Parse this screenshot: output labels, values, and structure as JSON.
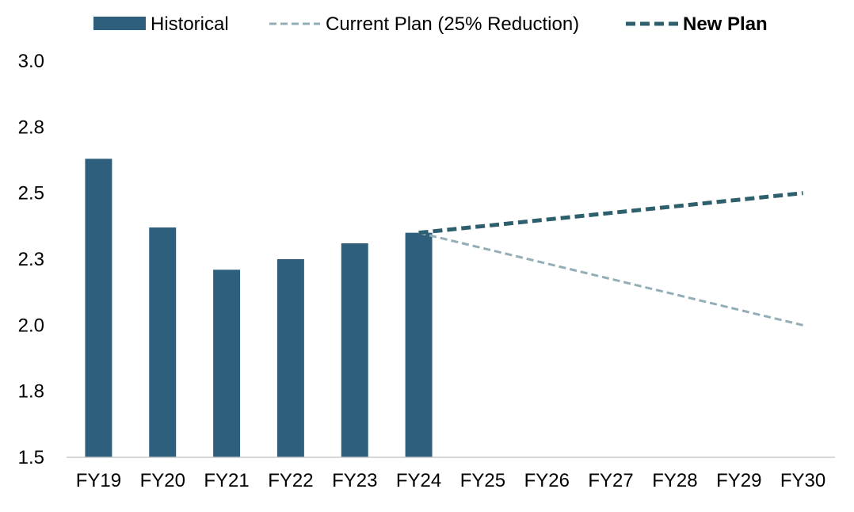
{
  "chart_data": {
    "type": "bar",
    "title": "",
    "xlabel": "",
    "ylabel": "",
    "categories": [
      "FY19",
      "FY20",
      "FY21",
      "FY22",
      "FY23",
      "FY24",
      "FY25",
      "FY26",
      "FY27",
      "FY28",
      "FY29",
      "FY30"
    ],
    "y_ticks": [
      "1.5",
      "1.8",
      "2.0",
      "2.3",
      "2.5",
      "2.8",
      "3.0"
    ],
    "ylim": [
      1.5,
      3.0
    ],
    "grid": false,
    "legend_position": "top-center",
    "series": [
      {
        "name": "Historical",
        "kind": "bar",
        "color": "#2e5f7c",
        "x": [
          "FY19",
          "FY20",
          "FY21",
          "FY22",
          "FY23",
          "FY24"
        ],
        "values": [
          2.63,
          2.37,
          2.21,
          2.25,
          2.31,
          2.35
        ]
      },
      {
        "name": "Current Plan (25% Reduction)",
        "kind": "dashed-line",
        "color": "#93aeb6",
        "x": [
          "FY24",
          "FY30"
        ],
        "values": [
          2.35,
          2.0
        ]
      },
      {
        "name": "New Plan",
        "kind": "dashed-line-bold",
        "color": "#2e5f6c",
        "x": [
          "FY24",
          "FY30"
        ],
        "values": [
          2.35,
          2.5
        ]
      }
    ]
  }
}
